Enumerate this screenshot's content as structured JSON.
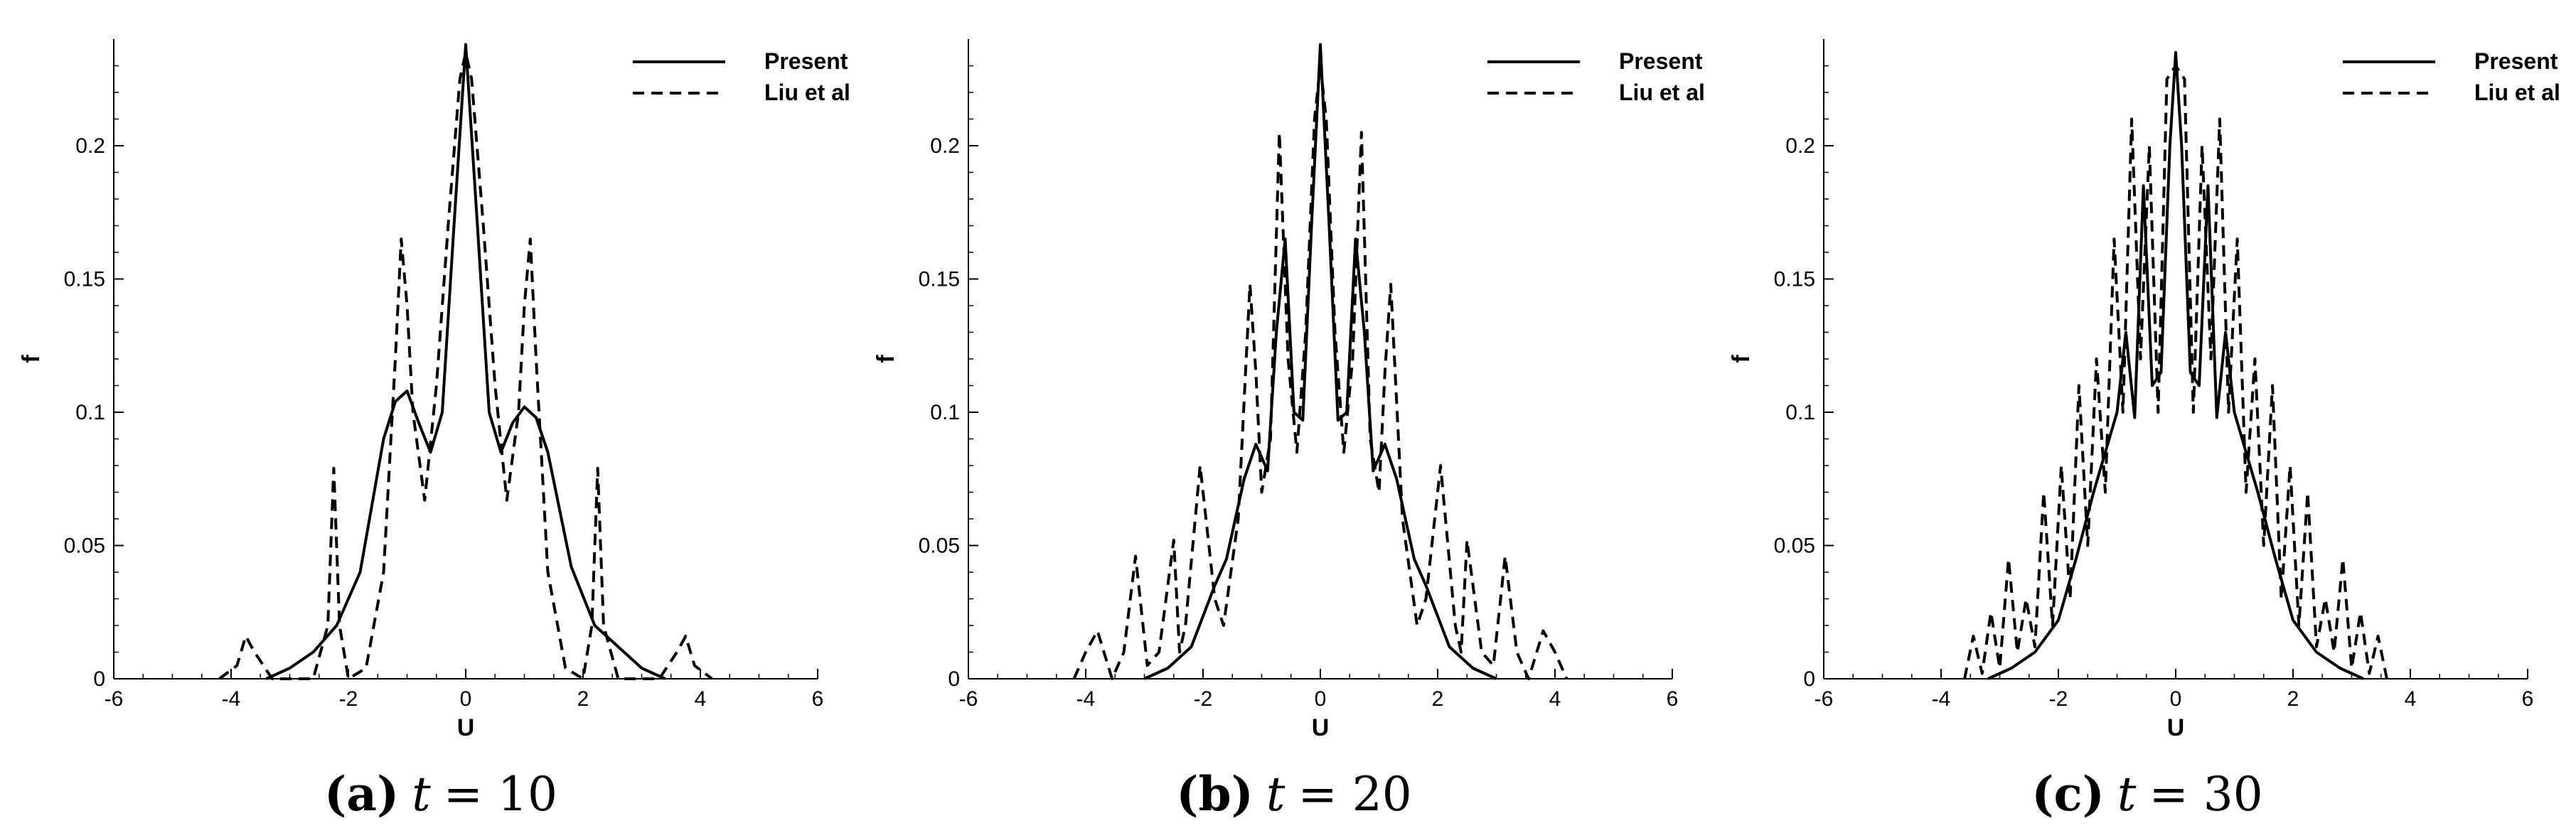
{
  "figure": {
    "panels": [
      {
        "caption": {
          "letter": "(a)",
          "var": "t",
          "rest": "= 10"
        },
        "chart_data": {
          "type": "line",
          "xlabel": "U",
          "ylabel": "f",
          "xlim": [
            -6,
            6
          ],
          "ylim": [
            0,
            0.24
          ],
          "xticks": [
            "-6",
            "-4",
            "-2",
            "0",
            "2",
            "4",
            "6"
          ],
          "yticks": [
            "0",
            "0.05",
            "0.1",
            "0.15",
            "0.2"
          ],
          "grid": false,
          "legend": "top-right",
          "series": [
            {
              "name": "Present",
              "style": "solid",
              "x": [
                -3.4,
                -3.0,
                -2.6,
                -2.2,
                -1.8,
                -1.4,
                -1.2,
                -1.0,
                -0.8,
                -0.6,
                -0.4,
                -0.2,
                0.0,
                0.2,
                0.4,
                0.6,
                0.8,
                1.0,
                1.2,
                1.4,
                1.8,
                2.2,
                2.6,
                3.0,
                3.4
              ],
              "y": [
                0,
                0.004,
                0.01,
                0.02,
                0.04,
                0.09,
                0.104,
                0.108,
                0.096,
                0.085,
                0.1,
                0.17,
                0.238,
                0.17,
                0.1,
                0.085,
                0.096,
                0.102,
                0.098,
                0.085,
                0.042,
                0.02,
                0.012,
                0.004,
                0
              ]
            },
            {
              "name": "Liu et al",
              "style": "dashed",
              "x": [
                -4.2,
                -3.9,
                -3.75,
                -3.6,
                -3.3,
                -2.6,
                -2.35,
                -2.25,
                -2.15,
                -2.0,
                -1.7,
                -1.4,
                -1.2,
                -1.1,
                -1.0,
                -0.9,
                -0.7,
                -0.5,
                -0.3,
                -0.1,
                0.0,
                0.1,
                0.3,
                0.5,
                0.7,
                0.9,
                1.0,
                1.1,
                1.2,
                1.4,
                1.7,
                2.0,
                2.15,
                2.25,
                2.35,
                2.6,
                3.3,
                3.6,
                3.75,
                3.9,
                4.2
              ],
              "y": [
                0,
                0.005,
                0.016,
                0.01,
                0,
                0,
                0.02,
                0.079,
                0.02,
                0,
                0.004,
                0.04,
                0.12,
                0.165,
                0.14,
                0.1,
                0.067,
                0.11,
                0.17,
                0.225,
                0.235,
                0.225,
                0.17,
                0.11,
                0.067,
                0.1,
                0.14,
                0.165,
                0.12,
                0.04,
                0.004,
                0,
                0.02,
                0.079,
                0.02,
                0,
                0,
                0.01,
                0.016,
                0.005,
                0
              ]
            }
          ]
        }
      },
      {
        "caption": {
          "letter": "(b)",
          "var": "t",
          "rest": "= 20"
        },
        "chart_data": {
          "type": "line",
          "xlabel": "U",
          "ylabel": "f",
          "xlim": [
            -6,
            6
          ],
          "ylim": [
            0,
            0.24
          ],
          "xticks": [
            "-6",
            "-4",
            "-2",
            "0",
            "2",
            "4",
            "6"
          ],
          "yticks": [
            "0",
            "0.05",
            "0.1",
            "0.15",
            "0.2"
          ],
          "grid": false,
          "legend": "top-right",
          "series": [
            {
              "name": "Present",
              "style": "solid",
              "x": [
                -3.0,
                -2.6,
                -2.2,
                -1.8,
                -1.6,
                -1.3,
                -1.1,
                -0.9,
                -0.75,
                -0.6,
                -0.45,
                -0.3,
                -0.15,
                0.0,
                0.15,
                0.3,
                0.45,
                0.6,
                0.75,
                0.9,
                1.1,
                1.3,
                1.6,
                1.8,
                2.2,
                2.6,
                3.0
              ],
              "y": [
                0,
                0.004,
                0.012,
                0.035,
                0.045,
                0.075,
                0.088,
                0.078,
                0.13,
                0.165,
                0.1,
                0.097,
                0.17,
                0.238,
                0.17,
                0.097,
                0.1,
                0.165,
                0.13,
                0.078,
                0.088,
                0.075,
                0.045,
                0.035,
                0.012,
                0.004,
                0
              ]
            },
            {
              "name": "Liu et al",
              "style": "dashed",
              "x": [
                -4.2,
                -4.0,
                -3.8,
                -3.55,
                -3.35,
                -3.15,
                -2.95,
                -2.75,
                -2.5,
                -2.4,
                -2.3,
                -2.05,
                -1.8,
                -1.65,
                -1.4,
                -1.2,
                -1.1,
                -1.0,
                -0.85,
                -0.7,
                -0.55,
                -0.4,
                -0.25,
                -0.1,
                0.0,
                0.1,
                0.25,
                0.4,
                0.55,
                0.7,
                0.85,
                1.0,
                1.1,
                1.2,
                1.4,
                1.65,
                1.8,
                2.05,
                2.3,
                2.4,
                2.5,
                2.75,
                2.95,
                3.15,
                3.35,
                3.55,
                3.8,
                4.0,
                4.2
              ],
              "y": [
                0,
                0.01,
                0.018,
                0,
                0.01,
                0.046,
                0.005,
                0.01,
                0.052,
                0.01,
                0.02,
                0.08,
                0.03,
                0.02,
                0.06,
                0.148,
                0.115,
                0.07,
                0.09,
                0.205,
                0.12,
                0.085,
                0.13,
                0.21,
                0.23,
                0.21,
                0.13,
                0.085,
                0.12,
                0.205,
                0.09,
                0.07,
                0.115,
                0.148,
                0.06,
                0.02,
                0.03,
                0.08,
                0.02,
                0.01,
                0.052,
                0.01,
                0.005,
                0.046,
                0.01,
                0,
                0.018,
                0.01,
                0
              ]
            }
          ]
        }
      },
      {
        "caption": {
          "letter": "(c)",
          "var": "t",
          "rest": "= 30"
        },
        "chart_data": {
          "type": "line",
          "xlabel": "U",
          "ylabel": "f",
          "xlim": [
            -6,
            6
          ],
          "ylim": [
            0,
            0.24
          ],
          "xticks": [
            "-6",
            "-4",
            "-2",
            "0",
            "2",
            "4",
            "6"
          ],
          "yticks": [
            "0",
            "0.05",
            "0.1",
            "0.15",
            "0.2"
          ],
          "grid": false,
          "legend": "top-right",
          "series": [
            {
              "name": "Present",
              "style": "solid",
              "x": [
                -3.2,
                -2.8,
                -2.4,
                -2.0,
                -1.7,
                -1.4,
                -1.2,
                -1.0,
                -0.85,
                -0.7,
                -0.55,
                -0.4,
                -0.25,
                -0.1,
                0.0,
                0.1,
                0.25,
                0.4,
                0.55,
                0.7,
                0.85,
                1.0,
                1.2,
                1.4,
                1.7,
                2.0,
                2.4,
                2.8,
                3.2
              ],
              "y": [
                0,
                0.004,
                0.01,
                0.022,
                0.045,
                0.07,
                0.085,
                0.1,
                0.13,
                0.098,
                0.185,
                0.11,
                0.115,
                0.2,
                0.235,
                0.2,
                0.115,
                0.11,
                0.185,
                0.098,
                0.13,
                0.1,
                0.085,
                0.07,
                0.045,
                0.022,
                0.01,
                0.004,
                0
              ]
            },
            {
              "name": "Liu et al",
              "style": "dashed",
              "x": [
                -3.6,
                -3.45,
                -3.3,
                -3.15,
                -3.0,
                -2.85,
                -2.7,
                -2.55,
                -2.4,
                -2.25,
                -2.1,
                -1.95,
                -1.8,
                -1.65,
                -1.5,
                -1.35,
                -1.2,
                -1.05,
                -0.9,
                -0.75,
                -0.6,
                -0.45,
                -0.3,
                -0.15,
                0.0,
                0.15,
                0.3,
                0.45,
                0.6,
                0.75,
                0.9,
                1.05,
                1.2,
                1.35,
                1.5,
                1.65,
                1.8,
                1.95,
                2.1,
                2.25,
                2.4,
                2.55,
                2.7,
                2.85,
                3.0,
                3.15,
                3.3,
                3.45,
                3.6
              ],
              "y": [
                0,
                0.016,
                0.002,
                0.025,
                0.004,
                0.045,
                0.01,
                0.03,
                0.012,
                0.07,
                0.02,
                0.08,
                0.03,
                0.11,
                0.05,
                0.12,
                0.07,
                0.165,
                0.1,
                0.21,
                0.12,
                0.2,
                0.1,
                0.225,
                0.23,
                0.225,
                0.1,
                0.2,
                0.12,
                0.21,
                0.1,
                0.165,
                0.07,
                0.12,
                0.05,
                0.11,
                0.03,
                0.08,
                0.02,
                0.07,
                0.012,
                0.03,
                0.01,
                0.045,
                0.004,
                0.025,
                0.002,
                0.016,
                0
              ]
            }
          ]
        }
      }
    ]
  }
}
